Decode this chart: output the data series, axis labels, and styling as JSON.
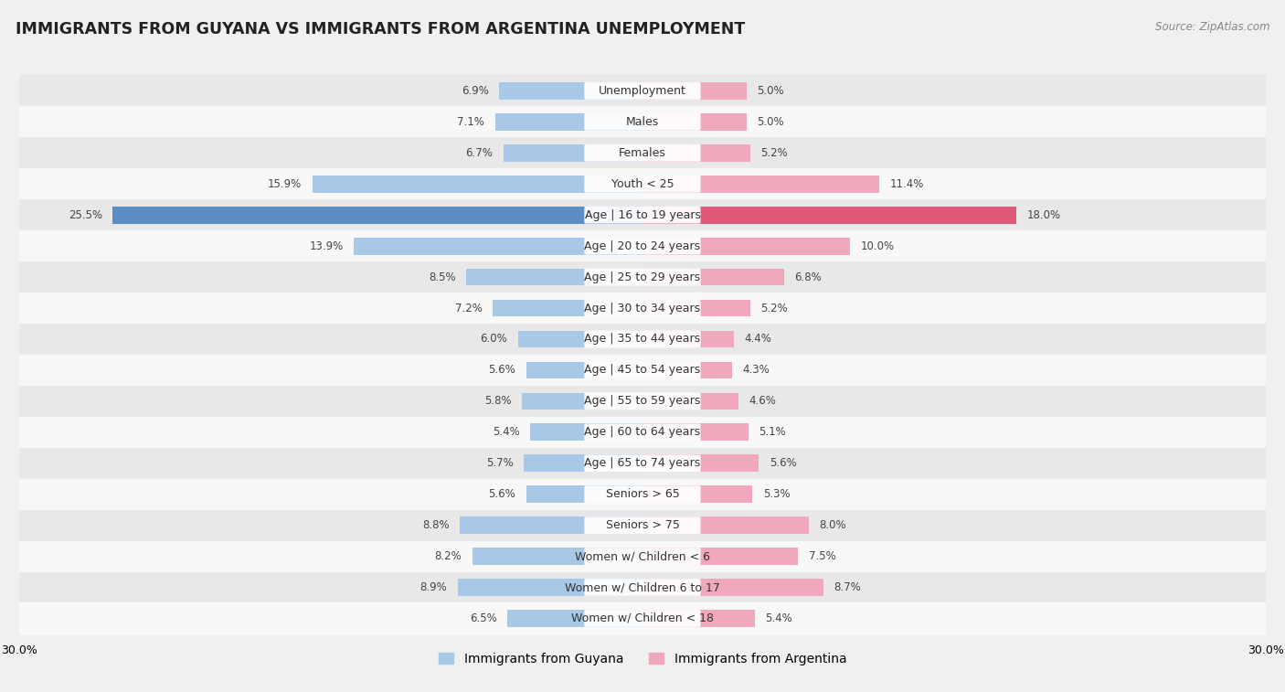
{
  "title": "IMMIGRANTS FROM GUYANA VS IMMIGRANTS FROM ARGENTINA UNEMPLOYMENT",
  "source": "Source: ZipAtlas.com",
  "categories": [
    "Unemployment",
    "Males",
    "Females",
    "Youth < 25",
    "Age | 16 to 19 years",
    "Age | 20 to 24 years",
    "Age | 25 to 29 years",
    "Age | 30 to 34 years",
    "Age | 35 to 44 years",
    "Age | 45 to 54 years",
    "Age | 55 to 59 years",
    "Age | 60 to 64 years",
    "Age | 65 to 74 years",
    "Seniors > 65",
    "Seniors > 75",
    "Women w/ Children < 6",
    "Women w/ Children 6 to 17",
    "Women w/ Children < 18"
  ],
  "guyana_values": [
    6.9,
    7.1,
    6.7,
    15.9,
    25.5,
    13.9,
    8.5,
    7.2,
    6.0,
    5.6,
    5.8,
    5.4,
    5.7,
    5.6,
    8.8,
    8.2,
    8.9,
    6.5
  ],
  "argentina_values": [
    5.0,
    5.0,
    5.2,
    11.4,
    18.0,
    10.0,
    6.8,
    5.2,
    4.4,
    4.3,
    4.6,
    5.1,
    5.6,
    5.3,
    8.0,
    7.5,
    8.7,
    5.4
  ],
  "guyana_color_normal": "#a8c8e8",
  "guyana_color_highlight": "#5b8ec4",
  "argentina_color_normal": "#f0a8bc",
  "argentina_color_highlight": "#e05878",
  "highlight_row": 4,
  "background_color": "#f0f0f0",
  "row_colors": [
    "#e8e8e8",
    "#f8f8f8"
  ],
  "axis_limit": 30.0,
  "label_fontsize": 9.0,
  "title_fontsize": 12.5,
  "source_fontsize": 8.5,
  "legend_fontsize": 10,
  "value_fontsize": 8.5,
  "bar_height": 0.55
}
